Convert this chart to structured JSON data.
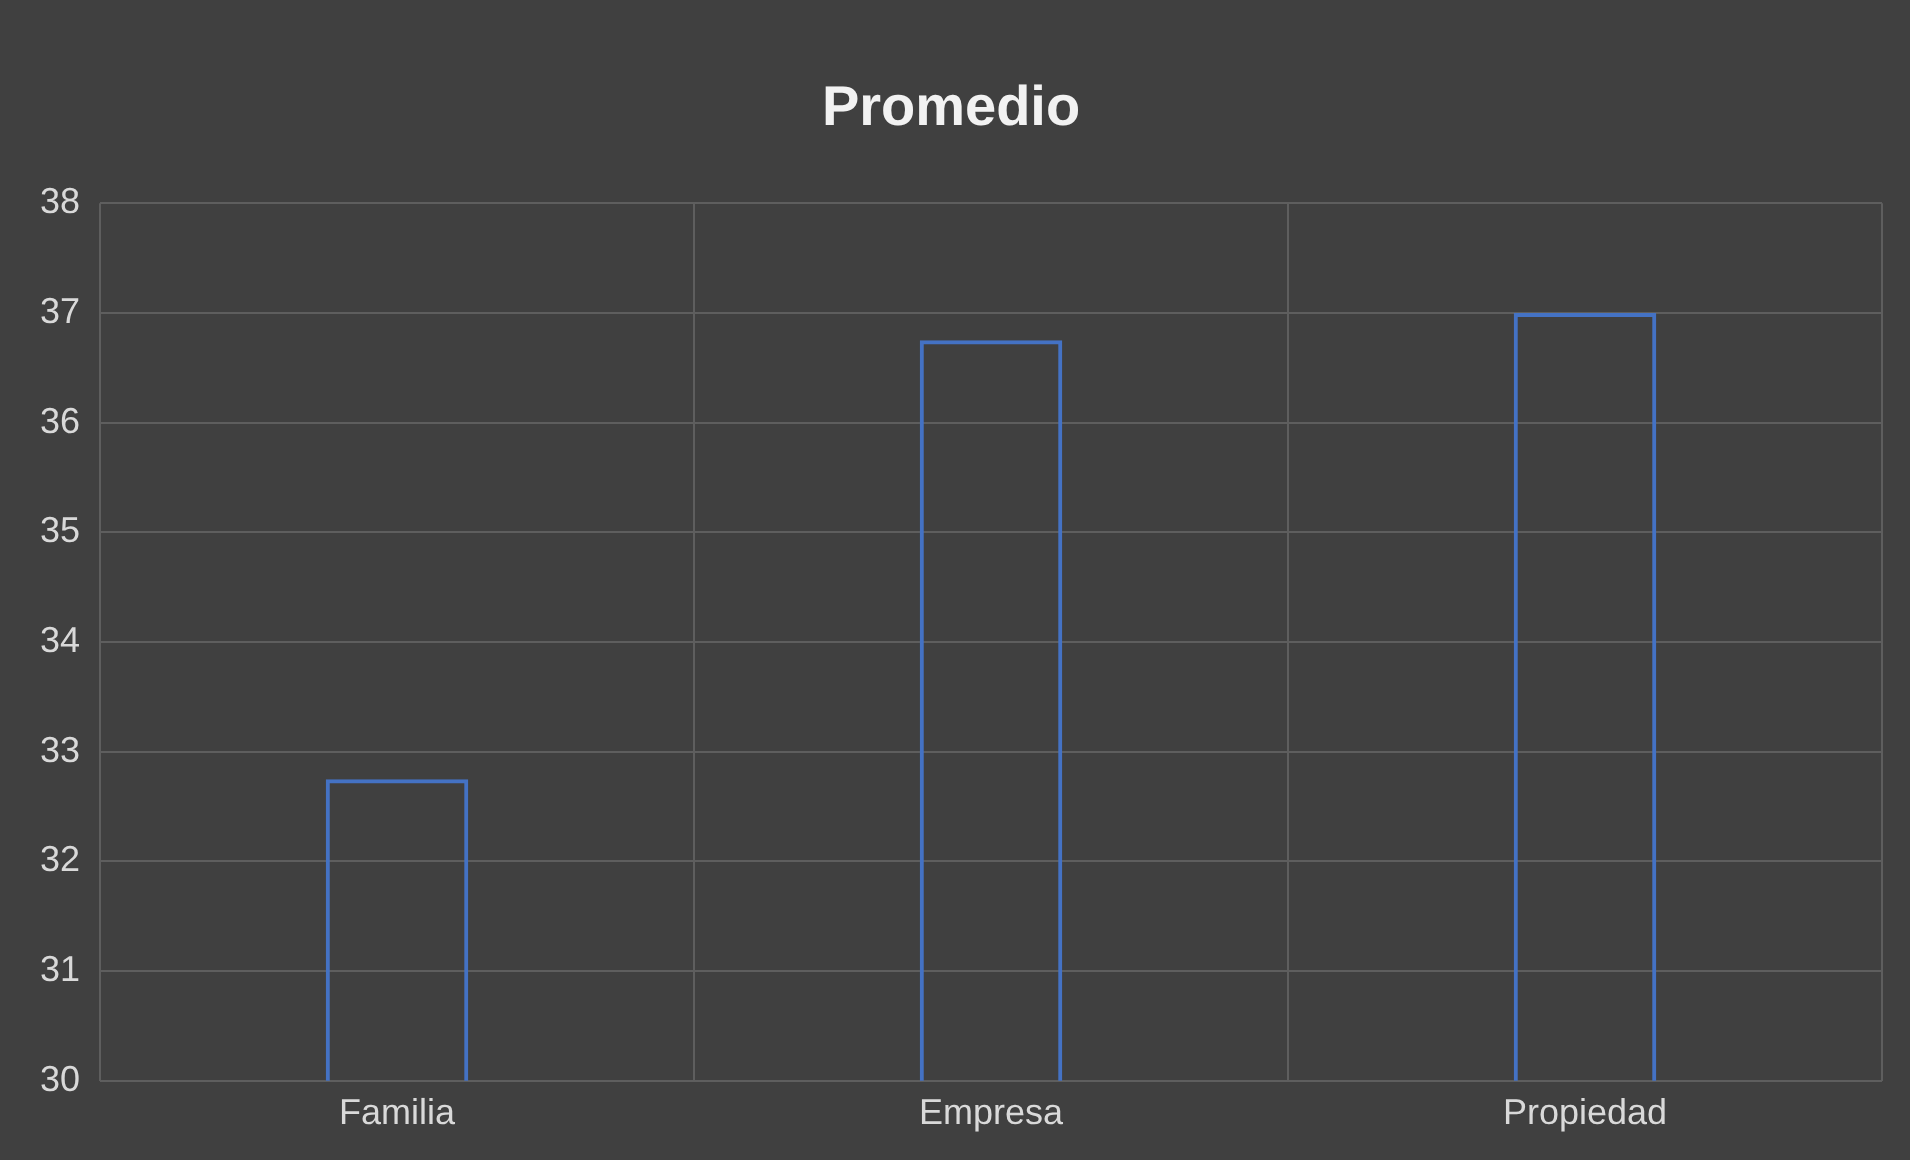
{
  "chart_data": {
    "type": "bar",
    "title": "Promedio",
    "categories": [
      "Familia",
      "Empresa",
      "Propiedad"
    ],
    "values": [
      32.75,
      36.75,
      37
    ],
    "color": "#4472c4",
    "ylim": [
      30,
      38
    ],
    "yticks": [
      30,
      31,
      32,
      33,
      34,
      35,
      36,
      37,
      38
    ],
    "grid": true
  }
}
